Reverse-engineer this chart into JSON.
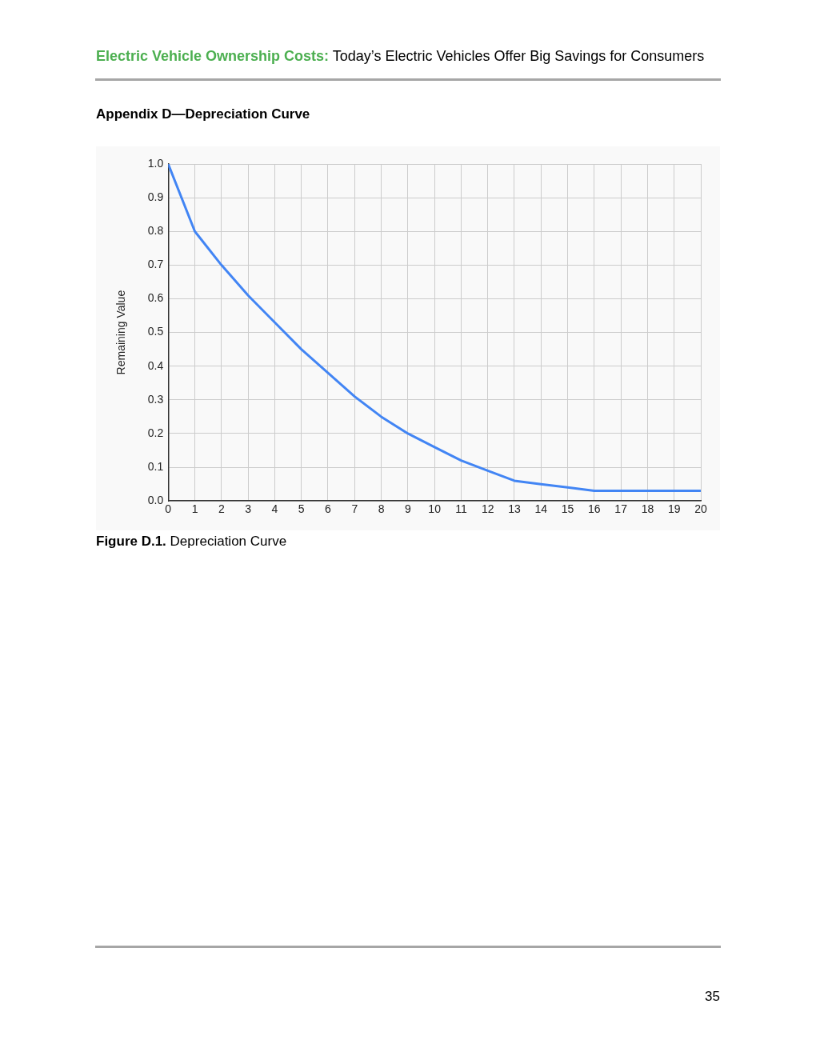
{
  "chart_data": {
    "type": "line",
    "title": "Appendix D—Depreciation Curve",
    "ylabel": "Remaining Value",
    "annotations": [
      "Electric Vehicle Ownership Costs:",
      "Today’s Electric Vehicles Offer Big Savings for Consumers",
      "Figure D.1.",
      "Depreciation Curve",
      "35"
    ],
    "x": [
      0,
      1,
      2,
      3,
      4,
      5,
      6,
      7,
      8,
      9,
      10,
      11,
      12,
      13,
      14,
      15,
      16,
      17,
      18,
      19,
      20
    ],
    "series": [
      {
        "color": "#4285f4",
        "values": [
          1.0,
          0.8,
          0.7,
          0.61,
          0.53,
          0.45,
          0.38,
          0.31,
          0.25,
          0.2,
          0.16,
          0.12,
          0.09,
          0.06,
          0.05,
          0.04,
          0.03,
          0.03,
          0.03,
          0.03,
          0.03
        ]
      }
    ],
    "xlim": [
      0,
      20
    ],
    "xticks": [
      0,
      1,
      2,
      3,
      4,
      5,
      6,
      7,
      8,
      9,
      10,
      11,
      12,
      13,
      14,
      15,
      16,
      17,
      18,
      19,
      20
    ],
    "ylim": [
      0,
      1
    ],
    "yticks": [
      {
        "value": 0,
        "label": "0.0"
      },
      0.1,
      0.2,
      0.3,
      0.4,
      0.5,
      0.6,
      0.7,
      0.8,
      0.9,
      {
        "value": 1,
        "label": "1.0"
      }
    ],
    "grid": true,
    "legend": false,
    "marker": "none",
    "line_style": "solid"
  }
}
